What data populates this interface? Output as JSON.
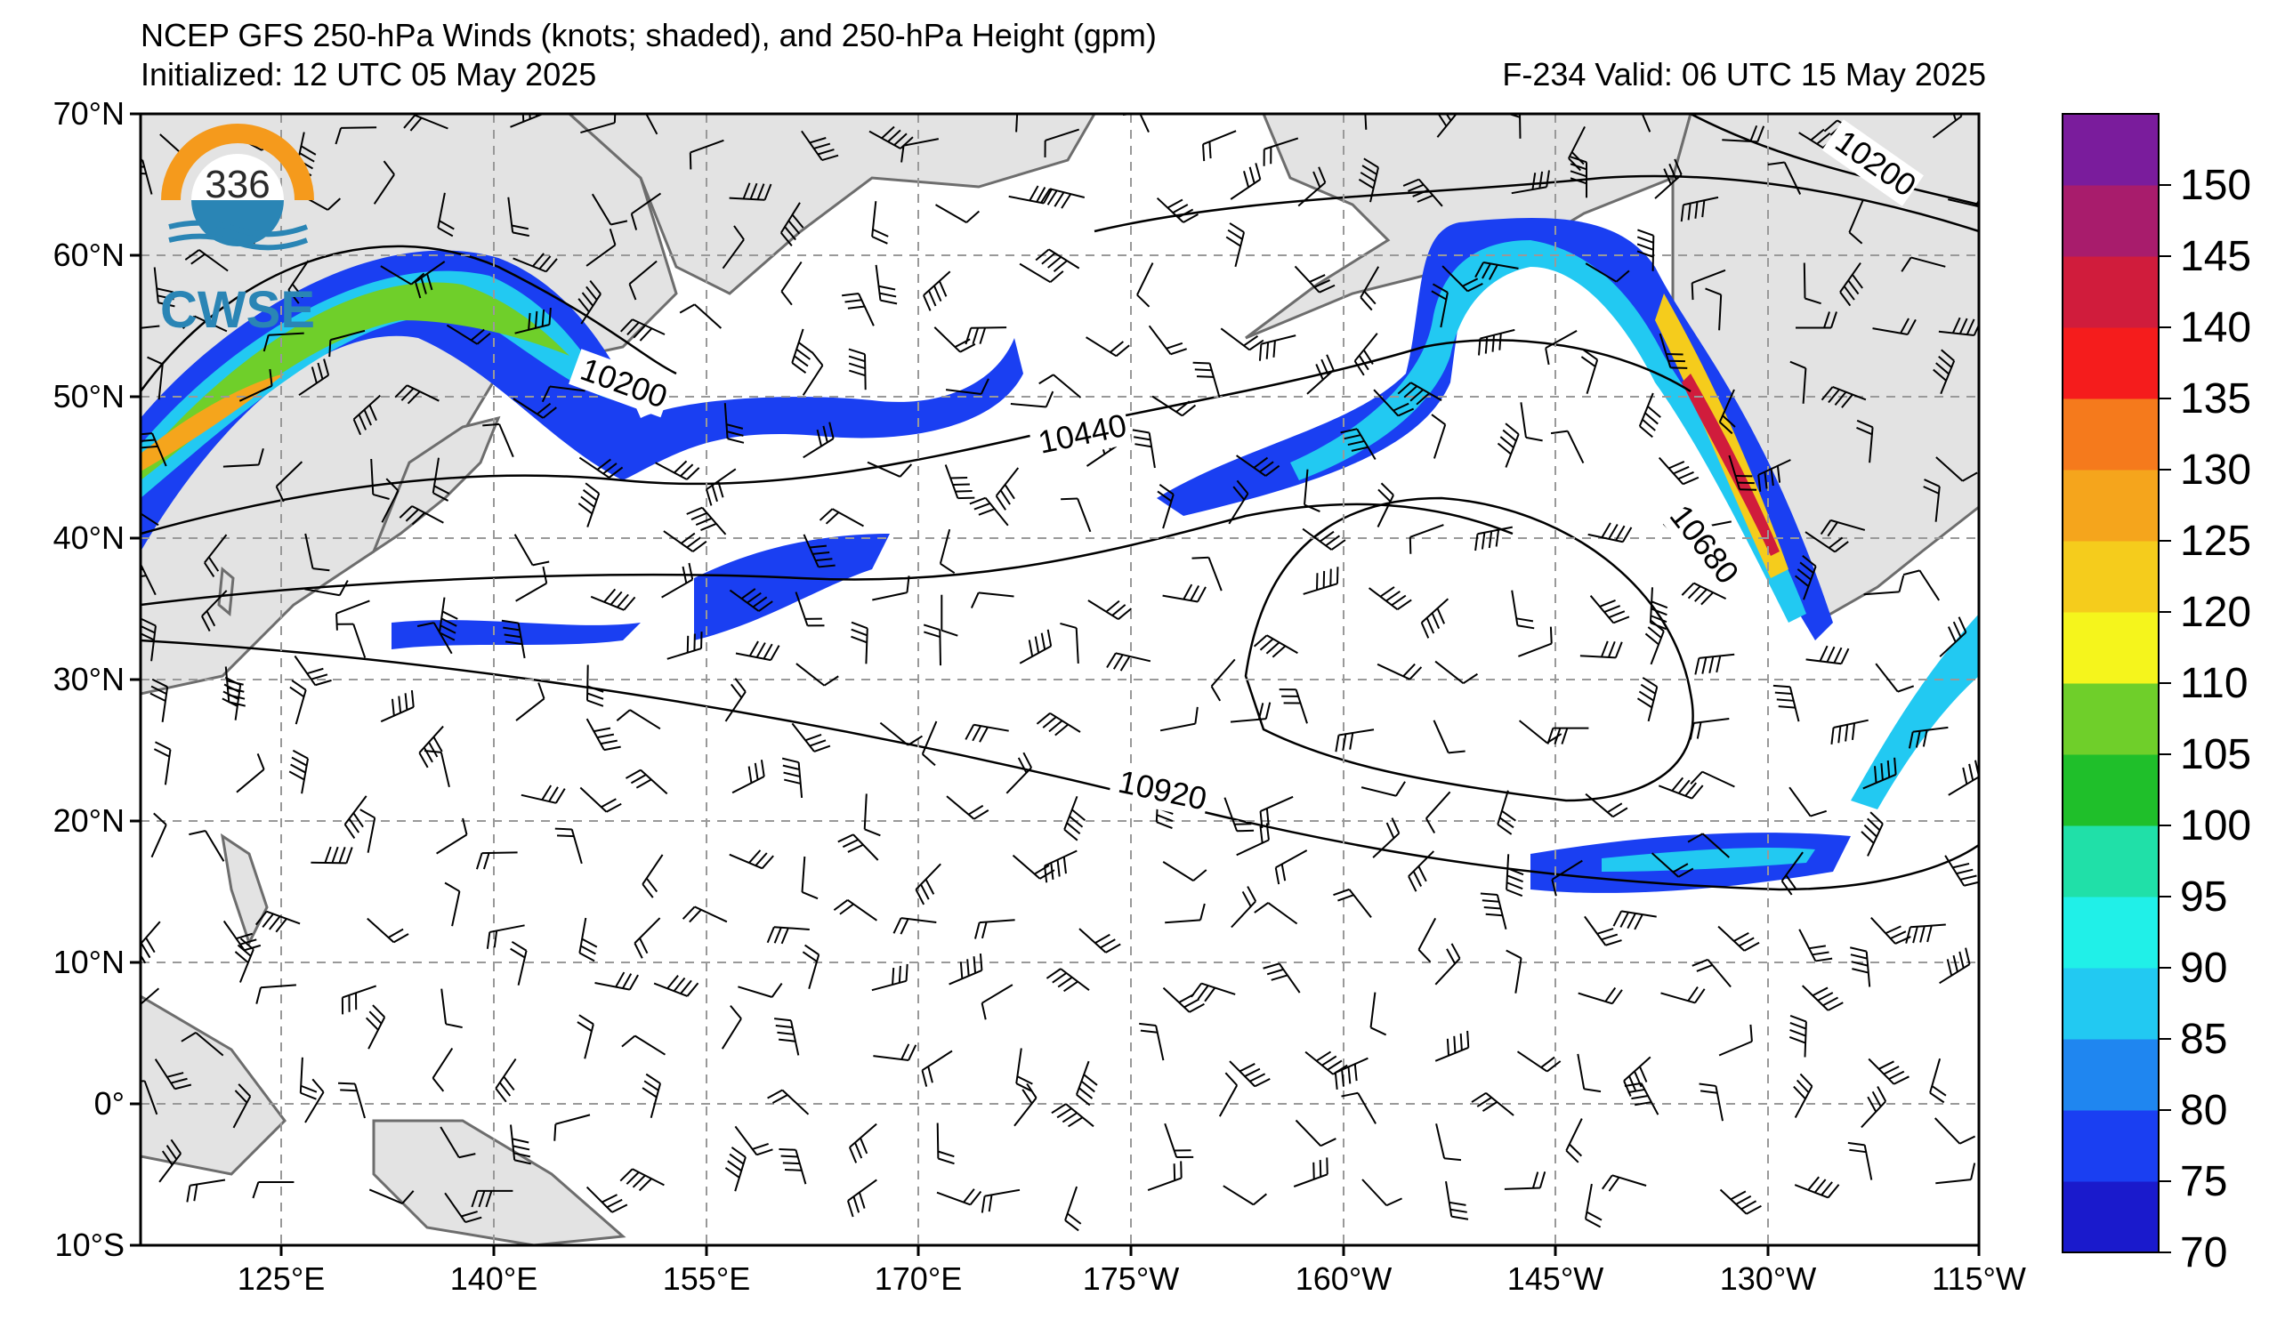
{
  "header": {
    "title": "NCEP GFS 250-hPa Winds (knots; shaded), and 250-hPa Height (gpm)",
    "initialized": "Initialized: 12 UTC 05 May 2025",
    "valid": "F-234  Valid: 06 UTC 15 May 2025"
  },
  "logo": {
    "text": "CWSE",
    "badge": "336",
    "icon": "storm-logo-icon"
  },
  "axes": {
    "lat_labels": [
      "70°N",
      "60°N",
      "50°N",
      "40°N",
      "30°N",
      "20°N",
      "10°N",
      "0°",
      "10°S"
    ],
    "lon_labels": [
      "125°E",
      "140°E",
      "155°E",
      "170°E",
      "175°W",
      "160°W",
      "145°W",
      "130°W",
      "115°W"
    ]
  },
  "contour_labels": [
    "10200",
    "10440",
    "10920",
    "10680",
    "10200"
  ],
  "colorbar": {
    "ticks": [
      "70",
      "75",
      "80",
      "85",
      "90",
      "95",
      "100",
      "105",
      "110",
      "120",
      "125",
      "130",
      "135",
      "140",
      "145",
      "150"
    ],
    "colors": [
      "#1a1acc",
      "#1a3ff2",
      "#1f86f0",
      "#22c9f2",
      "#20f0e8",
      "#20e0a8",
      "#1fbf2a",
      "#6fcf2a",
      "#f5f51c",
      "#f5cc1c",
      "#f5a51c",
      "#f57a1c",
      "#f51c1c",
      "#d01c3c",
      "#a81c6c",
      "#7a1c9c"
    ]
  },
  "colors": {
    "grid": "#999999",
    "land": "#e3e3e3",
    "coast": "#6d6d6d",
    "contour": "#000000"
  }
}
